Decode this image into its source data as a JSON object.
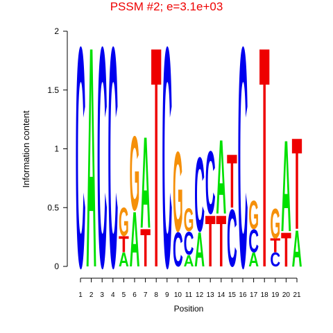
{
  "chart_data": {
    "type": "sequence-logo",
    "title": "PSSM #2; e=3.1e+03",
    "y_label": "Information content",
    "x_label": "Position",
    "ylim": [
      0,
      2
    ],
    "yticks": [
      0,
      0.5,
      1,
      1.5,
      2
    ],
    "xticks": [
      1,
      2,
      3,
      4,
      5,
      6,
      7,
      8,
      9,
      10,
      11,
      12,
      13,
      14,
      15,
      16,
      17,
      18,
      19,
      20,
      21
    ],
    "colors": {
      "A": "#00e000",
      "C": "#0000ee",
      "G": "#f5900a",
      "T": "#ee0000"
    },
    "positions": [
      [
        {
          "letter": "C",
          "value": 1.93
        }
      ],
      [
        {
          "letter": "A",
          "value": 1.93
        }
      ],
      [
        {
          "letter": "C",
          "value": 1.93
        }
      ],
      [
        {
          "letter": "C",
          "value": 1.93
        }
      ],
      [
        {
          "letter": "A",
          "value": 0.12
        },
        {
          "letter": "T",
          "value": 0.14
        },
        {
          "letter": "G",
          "value": 0.25
        }
      ],
      [
        {
          "letter": "A",
          "value": 0.48
        },
        {
          "letter": "G",
          "value": 0.65
        }
      ],
      [
        {
          "letter": "T",
          "value": 0.33
        },
        {
          "letter": "A",
          "value": 0.8
        }
      ],
      [
        {
          "letter": "T",
          "value": 1.93
        }
      ],
      [
        {
          "letter": "C",
          "value": 1.93
        }
      ],
      [
        {
          "letter": "C",
          "value": 0.3
        },
        {
          "letter": "G",
          "value": 0.7
        }
      ],
      [
        {
          "letter": "A",
          "value": 0.1
        },
        {
          "letter": "C",
          "value": 0.2
        },
        {
          "letter": "G",
          "value": 0.2
        }
      ],
      [
        {
          "letter": "A",
          "value": 0.3
        },
        {
          "letter": "C",
          "value": 0.65
        }
      ],
      [
        {
          "letter": "T",
          "value": 0.45
        },
        {
          "letter": "C",
          "value": 0.55
        }
      ],
      [
        {
          "letter": "T",
          "value": 0.45
        },
        {
          "letter": "A",
          "value": 0.65
        }
      ],
      [
        {
          "letter": "C",
          "value": 0.5
        },
        {
          "letter": "T",
          "value": 0.47
        }
      ],
      [
        {
          "letter": "C",
          "value": 1.93
        }
      ],
      [
        {
          "letter": "A",
          "value": 0.12
        },
        {
          "letter": "C",
          "value": 0.2
        },
        {
          "letter": "G",
          "value": 0.25
        }
      ],
      [
        {
          "letter": "T",
          "value": 1.93
        }
      ],
      [
        {
          "letter": "C",
          "value": 0.12
        },
        {
          "letter": "T",
          "value": 0.12
        },
        {
          "letter": "G",
          "value": 0.26
        }
      ],
      [
        {
          "letter": "T",
          "value": 0.3
        },
        {
          "letter": "A",
          "value": 0.8
        }
      ],
      [
        {
          "letter": "A",
          "value": 0.32
        },
        {
          "letter": "T",
          "value": 0.8
        }
      ]
    ]
  }
}
